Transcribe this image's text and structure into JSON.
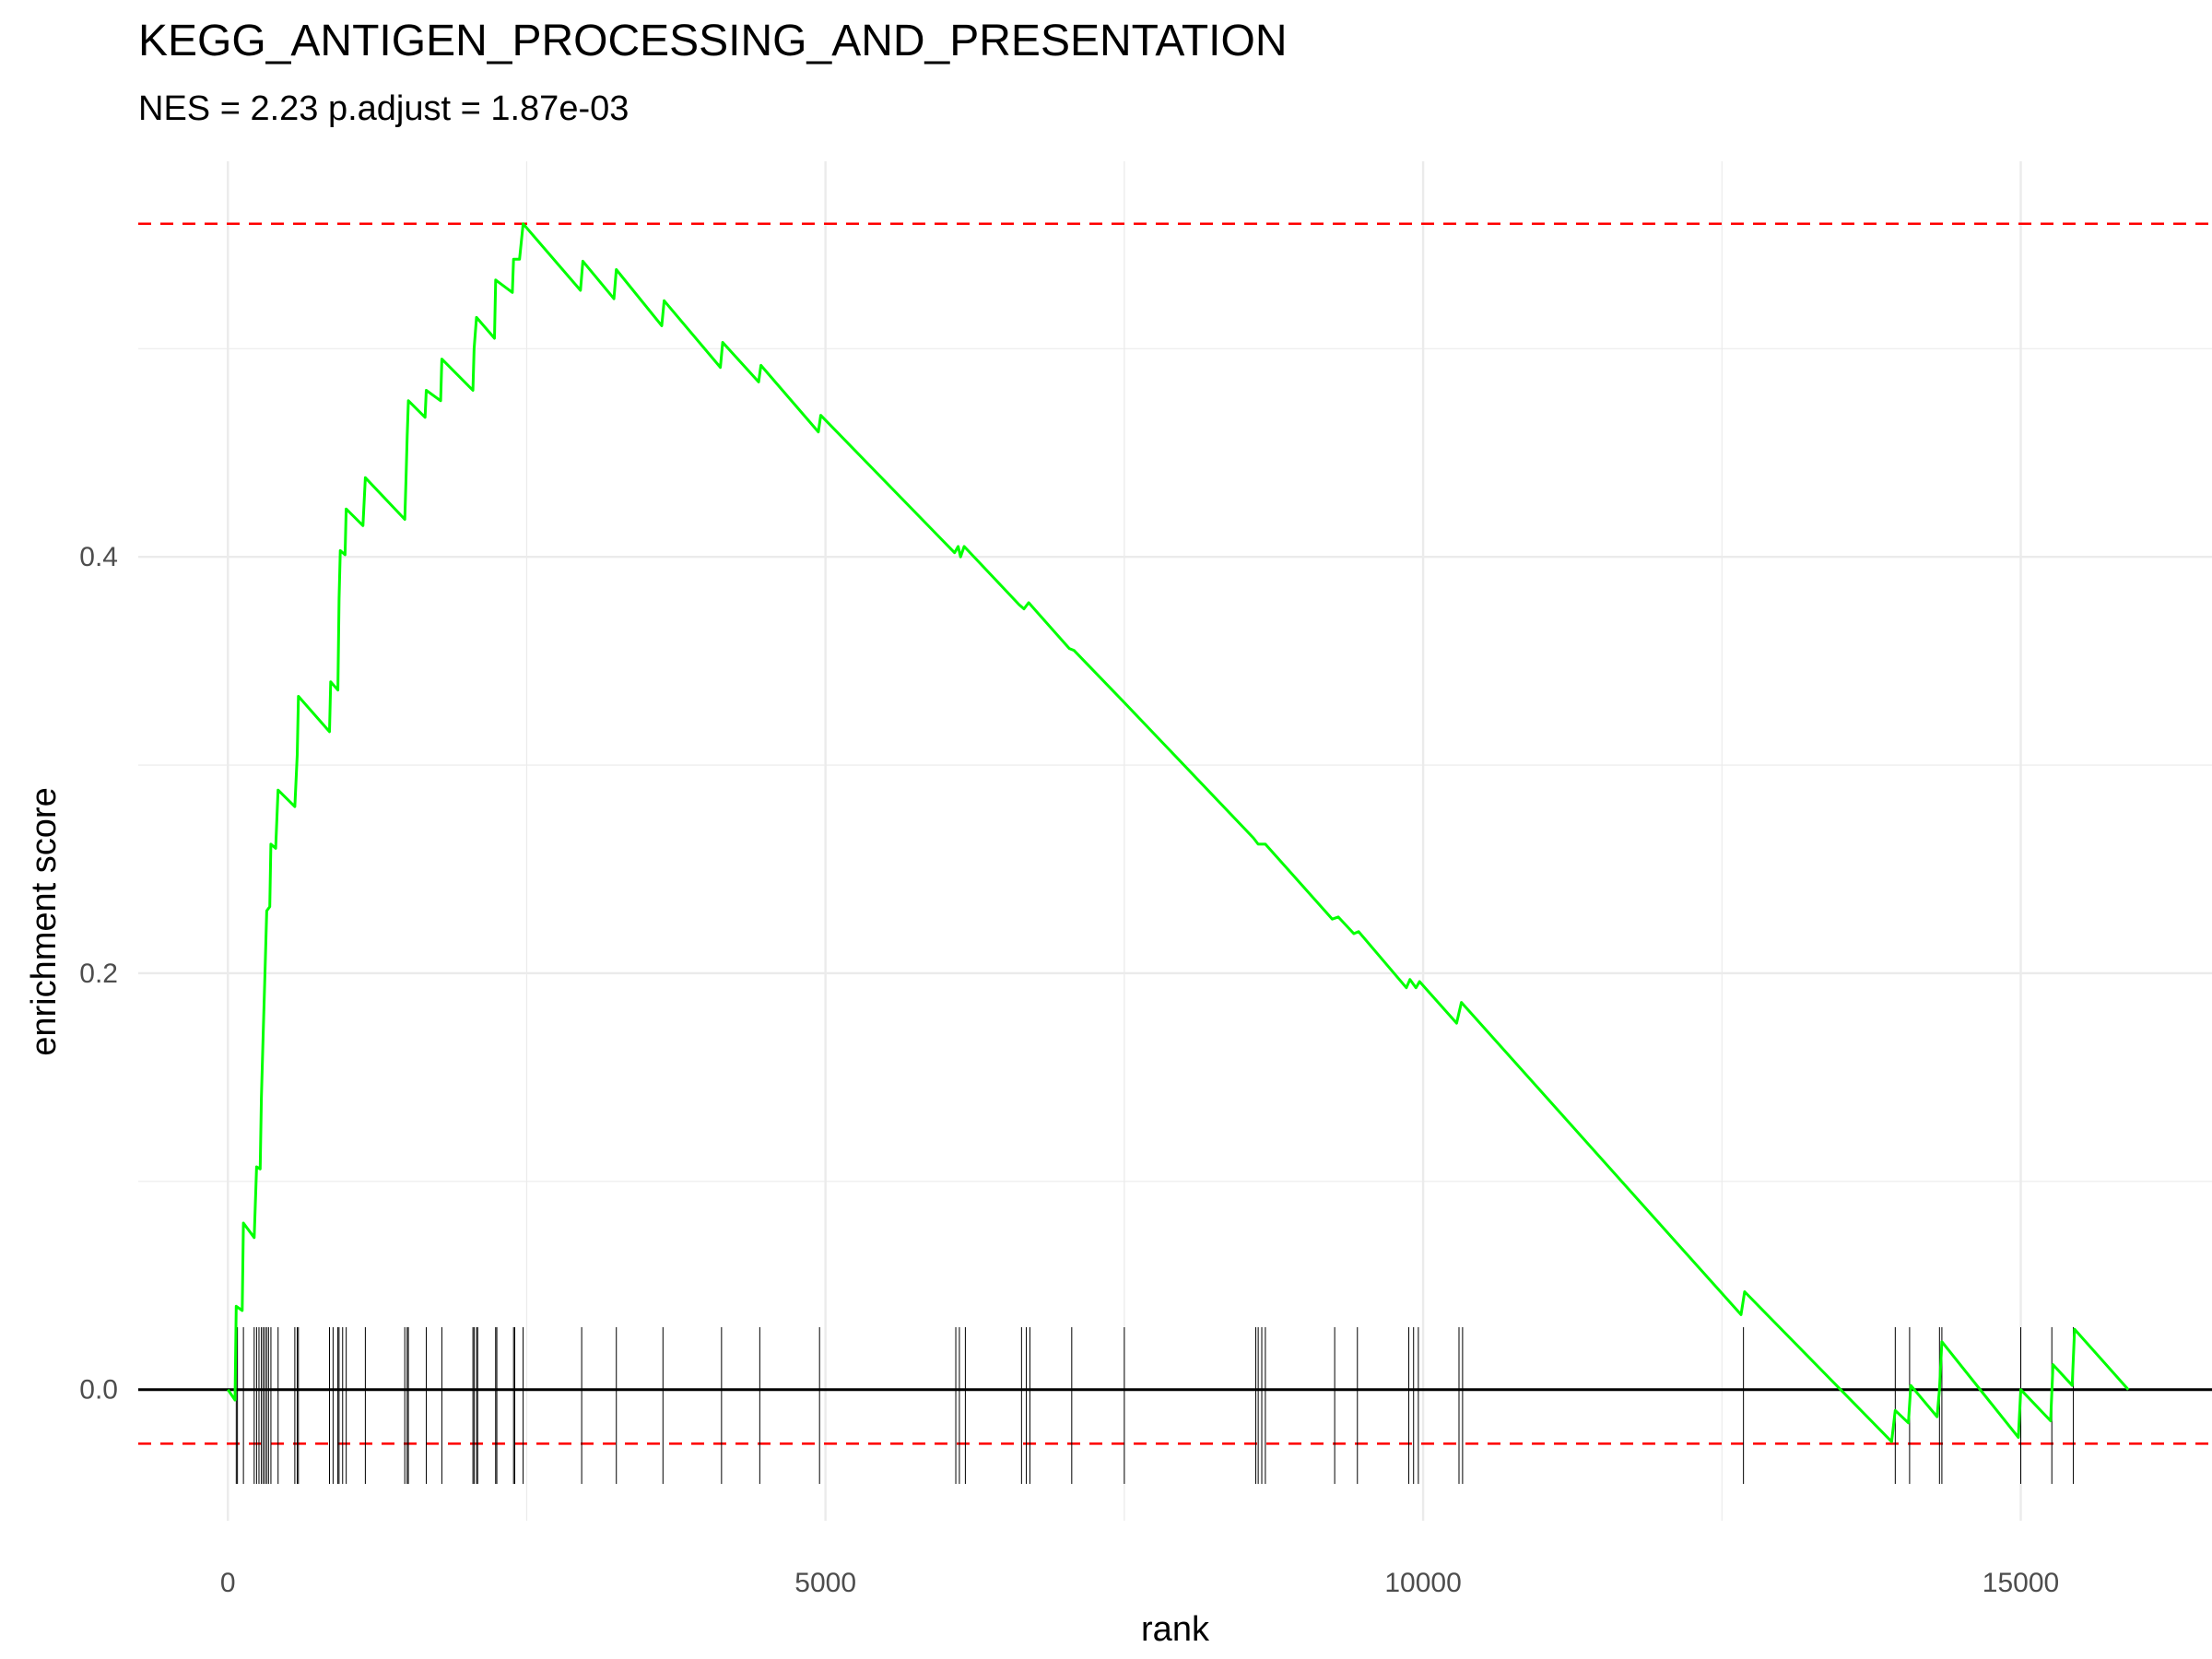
{
  "chart_data": {
    "type": "line",
    "title": "KEGG_ANTIGEN_PROCESSING_AND_PRESENTATION",
    "subtitle": "NES = 2.23 p.adjust = 1.87e-03",
    "xlabel": "rank",
    "ylabel": "enrichment score",
    "xlim": [
      -750,
      16600
    ],
    "ylim": [
      -0.063,
      0.59
    ],
    "x_ticks": [
      0,
      5000,
      10000,
      15000
    ],
    "x_tick_labels": [
      "0",
      "5000",
      "10000",
      "15000"
    ],
    "y_ticks": [
      0.0,
      0.2,
      0.4
    ],
    "y_tick_labels": [
      "0.0",
      "0.2",
      "0.4"
    ],
    "grid": true,
    "reference_lines": {
      "zero": 0.0,
      "max_es": 0.56,
      "min_es": -0.026
    },
    "colors": {
      "curve": "#00ff00",
      "reference": "#ff0000",
      "zero_line": "#000000",
      "hits": "#000000",
      "grid": "#ebebeb"
    },
    "series": [
      {
        "values": [
          [
            0,
            0.0
          ],
          [
            60,
            -0.005
          ],
          [
            70,
            0.04
          ],
          [
            120,
            0.038
          ],
          [
            130,
            0.08
          ],
          [
            220,
            0.073
          ],
          [
            240,
            0.107
          ],
          [
            270,
            0.106
          ],
          [
            280,
            0.14
          ],
          [
            295,
            0.17
          ],
          [
            310,
            0.2
          ],
          [
            325,
            0.23
          ],
          [
            350,
            0.232
          ],
          [
            360,
            0.262
          ],
          [
            400,
            0.26
          ],
          [
            420,
            0.288
          ],
          [
            560,
            0.28
          ],
          [
            580,
            0.305
          ],
          [
            590,
            0.333
          ],
          [
            850,
            0.316
          ],
          [
            860,
            0.34
          ],
          [
            920,
            0.336
          ],
          [
            930,
            0.38
          ],
          [
            940,
            0.403
          ],
          [
            980,
            0.401
          ],
          [
            990,
            0.423
          ],
          [
            1130,
            0.415
          ],
          [
            1150,
            0.438
          ],
          [
            1480,
            0.418
          ],
          [
            1490,
            0.437
          ],
          [
            1500,
            0.458
          ],
          [
            1510,
            0.475
          ],
          [
            1650,
            0.467
          ],
          [
            1660,
            0.48
          ],
          [
            1780,
            0.475
          ],
          [
            1790,
            0.495
          ],
          [
            2050,
            0.48
          ],
          [
            2060,
            0.5
          ],
          [
            2080,
            0.515
          ],
          [
            2230,
            0.505
          ],
          [
            2240,
            0.533
          ],
          [
            2380,
            0.527
          ],
          [
            2390,
            0.543
          ],
          [
            2440,
            0.543
          ],
          [
            2470,
            0.56
          ],
          [
            2950,
            0.528
          ],
          [
            2970,
            0.542
          ],
          [
            3230,
            0.524
          ],
          [
            3250,
            0.538
          ],
          [
            3630,
            0.511
          ],
          [
            3650,
            0.523
          ],
          [
            4120,
            0.491
          ],
          [
            4140,
            0.503
          ],
          [
            4440,
            0.484
          ],
          [
            4460,
            0.492
          ],
          [
            4940,
            0.46
          ],
          [
            4960,
            0.468
          ],
          [
            6080,
            0.402
          ],
          [
            6110,
            0.405
          ],
          [
            6130,
            0.4
          ],
          [
            6160,
            0.405
          ],
          [
            6620,
            0.377
          ],
          [
            6660,
            0.375
          ],
          [
            6700,
            0.378
          ],
          [
            7040,
            0.356
          ],
          [
            7080,
            0.355
          ],
          [
            7500,
            0.33
          ],
          [
            8580,
            0.265
          ],
          [
            8620,
            0.262
          ],
          [
            8680,
            0.262
          ],
          [
            9240,
            0.226
          ],
          [
            9290,
            0.227
          ],
          [
            9420,
            0.219
          ],
          [
            9460,
            0.22
          ],
          [
            9860,
            0.193
          ],
          [
            9890,
            0.197
          ],
          [
            9940,
            0.193
          ],
          [
            9970,
            0.196
          ],
          [
            10280,
            0.176
          ],
          [
            10320,
            0.186
          ],
          [
            12660,
            0.036
          ],
          [
            12690,
            0.047
          ],
          [
            13920,
            -0.025
          ],
          [
            13950,
            -0.01
          ],
          [
            14060,
            -0.016
          ],
          [
            14080,
            0.002
          ],
          [
            14300,
            -0.013
          ],
          [
            14320,
            0.0
          ],
          [
            14340,
            0.023
          ],
          [
            14980,
            -0.023
          ],
          [
            15000,
            0.0
          ],
          [
            15250,
            -0.015
          ],
          [
            15270,
            0.012
          ],
          [
            15430,
            0.002
          ],
          [
            15450,
            0.029
          ],
          [
            15900,
            0.0
          ]
        ]
      }
    ],
    "hit_ranks": [
      70,
      80,
      130,
      220,
      240,
      260,
      280,
      295,
      310,
      325,
      340,
      360,
      420,
      560,
      580,
      590,
      850,
      880,
      920,
      930,
      960,
      990,
      1150,
      1480,
      1500,
      1510,
      1660,
      1790,
      2050,
      2060,
      2080,
      2090,
      2240,
      2250,
      2390,
      2400,
      2470,
      2960,
      3250,
      3640,
      4130,
      4450,
      4950,
      6090,
      6120,
      6170,
      6640,
      6680,
      6710,
      7060,
      7500,
      8600,
      8620,
      8650,
      8680,
      9260,
      9450,
      9880,
      9920,
      9960,
      10300,
      10330,
      12680,
      13950,
      14070,
      14320,
      14340,
      15000,
      15260,
      15440
    ]
  }
}
